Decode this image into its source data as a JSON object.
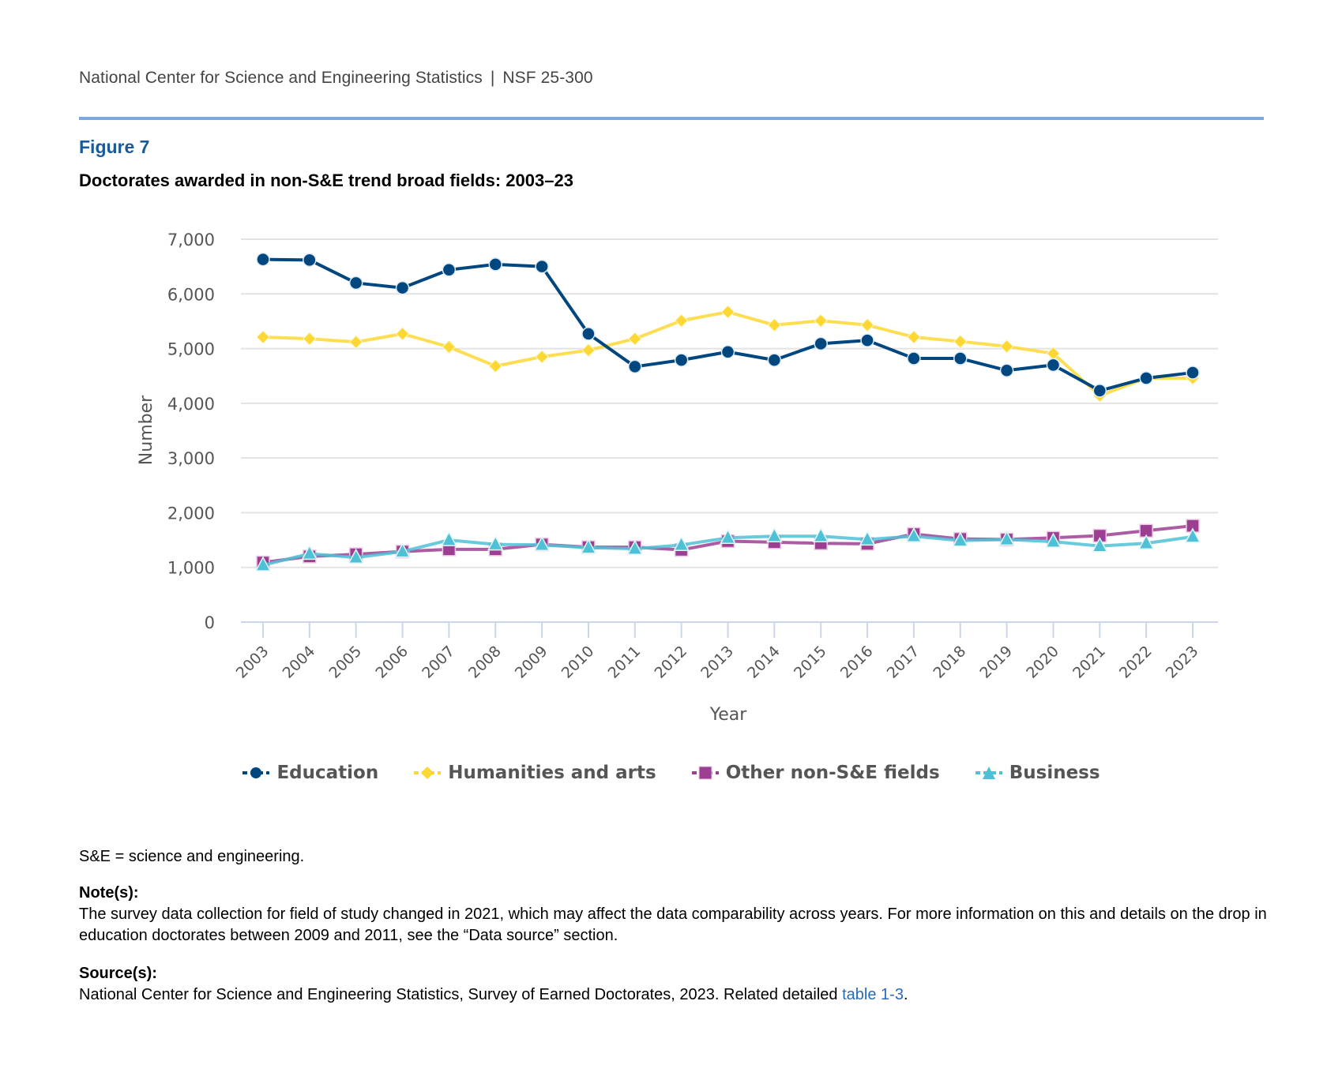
{
  "header": {
    "org": "National Center for Science and Engineering Statistics",
    "separator": "|",
    "report_id": "NSF 25-300"
  },
  "figure": {
    "label": "Figure 7",
    "title": "Doctorates awarded in non-S&E trend broad fields: 2003–23"
  },
  "chart_data": {
    "type": "line",
    "title": "Doctorates awarded in non-S&E trend broad fields: 2003–23",
    "xlabel": "Year",
    "ylabel": "Number",
    "ylim": [
      0,
      7000
    ],
    "yticks": [
      0,
      1000,
      2000,
      3000,
      4000,
      5000,
      6000,
      7000
    ],
    "ytick_labels": [
      "0",
      "1,000",
      "2,000",
      "3,000",
      "4,000",
      "5,000",
      "6,000",
      "7,000"
    ],
    "grid": true,
    "legend_position": "bottom-center",
    "x": [
      "2003",
      "2004",
      "2005",
      "2006",
      "2007",
      "2008",
      "2009",
      "2010",
      "2011",
      "2012",
      "2013",
      "2014",
      "2015",
      "2016",
      "2017",
      "2018",
      "2019",
      "2020",
      "2021",
      "2022",
      "2023"
    ],
    "series": [
      {
        "name": "Education",
        "color": "#00467f",
        "marker": "circle",
        "values": [
          6630,
          6620,
          6200,
          6110,
          6440,
          6540,
          6500,
          5270,
          4670,
          4790,
          4940,
          4790,
          5090,
          5150,
          4820,
          4820,
          4600,
          4700,
          4230,
          4460,
          4560
        ]
      },
      {
        "name": "Humanities and arts",
        "color": "#fdd835",
        "marker": "diamond",
        "values": [
          5210,
          5180,
          5120,
          5270,
          5030,
          4680,
          4850,
          4970,
          5180,
          5510,
          5670,
          5430,
          5510,
          5430,
          5210,
          5130,
          5040,
          4910,
          4140,
          4460,
          4460
        ]
      },
      {
        "name": "Other non-S&E fields",
        "color": "#9c3f92",
        "marker": "square",
        "values": [
          1090,
          1200,
          1240,
          1290,
          1330,
          1330,
          1420,
          1370,
          1370,
          1320,
          1480,
          1460,
          1440,
          1430,
          1610,
          1520,
          1510,
          1540,
          1580,
          1670,
          1760
        ]
      },
      {
        "name": "Business",
        "color": "#4fc1d6",
        "marker": "triangle",
        "values": [
          1040,
          1250,
          1180,
          1290,
          1500,
          1420,
          1410,
          1360,
          1340,
          1410,
          1540,
          1570,
          1570,
          1510,
          1570,
          1490,
          1510,
          1470,
          1390,
          1440,
          1560
        ]
      }
    ]
  },
  "legend": [
    {
      "label": "Education",
      "icon": "circle-marker-icon"
    },
    {
      "label": "Humanities and arts",
      "icon": "diamond-marker-icon"
    },
    {
      "label": "Other non-S&E fields",
      "icon": "square-marker-icon"
    },
    {
      "label": "Business",
      "icon": "triangle-marker-icon"
    }
  ],
  "footer": {
    "abbrev": "S&E = science and engineering.",
    "notes_heading": "Note(s):",
    "notes_text": "The survey data collection for field of study changed in 2021, which may affect the data comparability across years. For more information on this and details on the drop in education doctorates between 2009 and 2011, see the “Data source” section.",
    "sources_heading": "Source(s):",
    "sources_text": "National Center for Science and Engineering Statistics, Survey of Earned Doctorates, 2023. Related detailed ",
    "sources_link": "table 1-3",
    "sources_end": "."
  },
  "colors": {
    "accent_rule": "#7aa9e0",
    "figure_label": "#1a5a99",
    "link": "#2a6ab8"
  }
}
